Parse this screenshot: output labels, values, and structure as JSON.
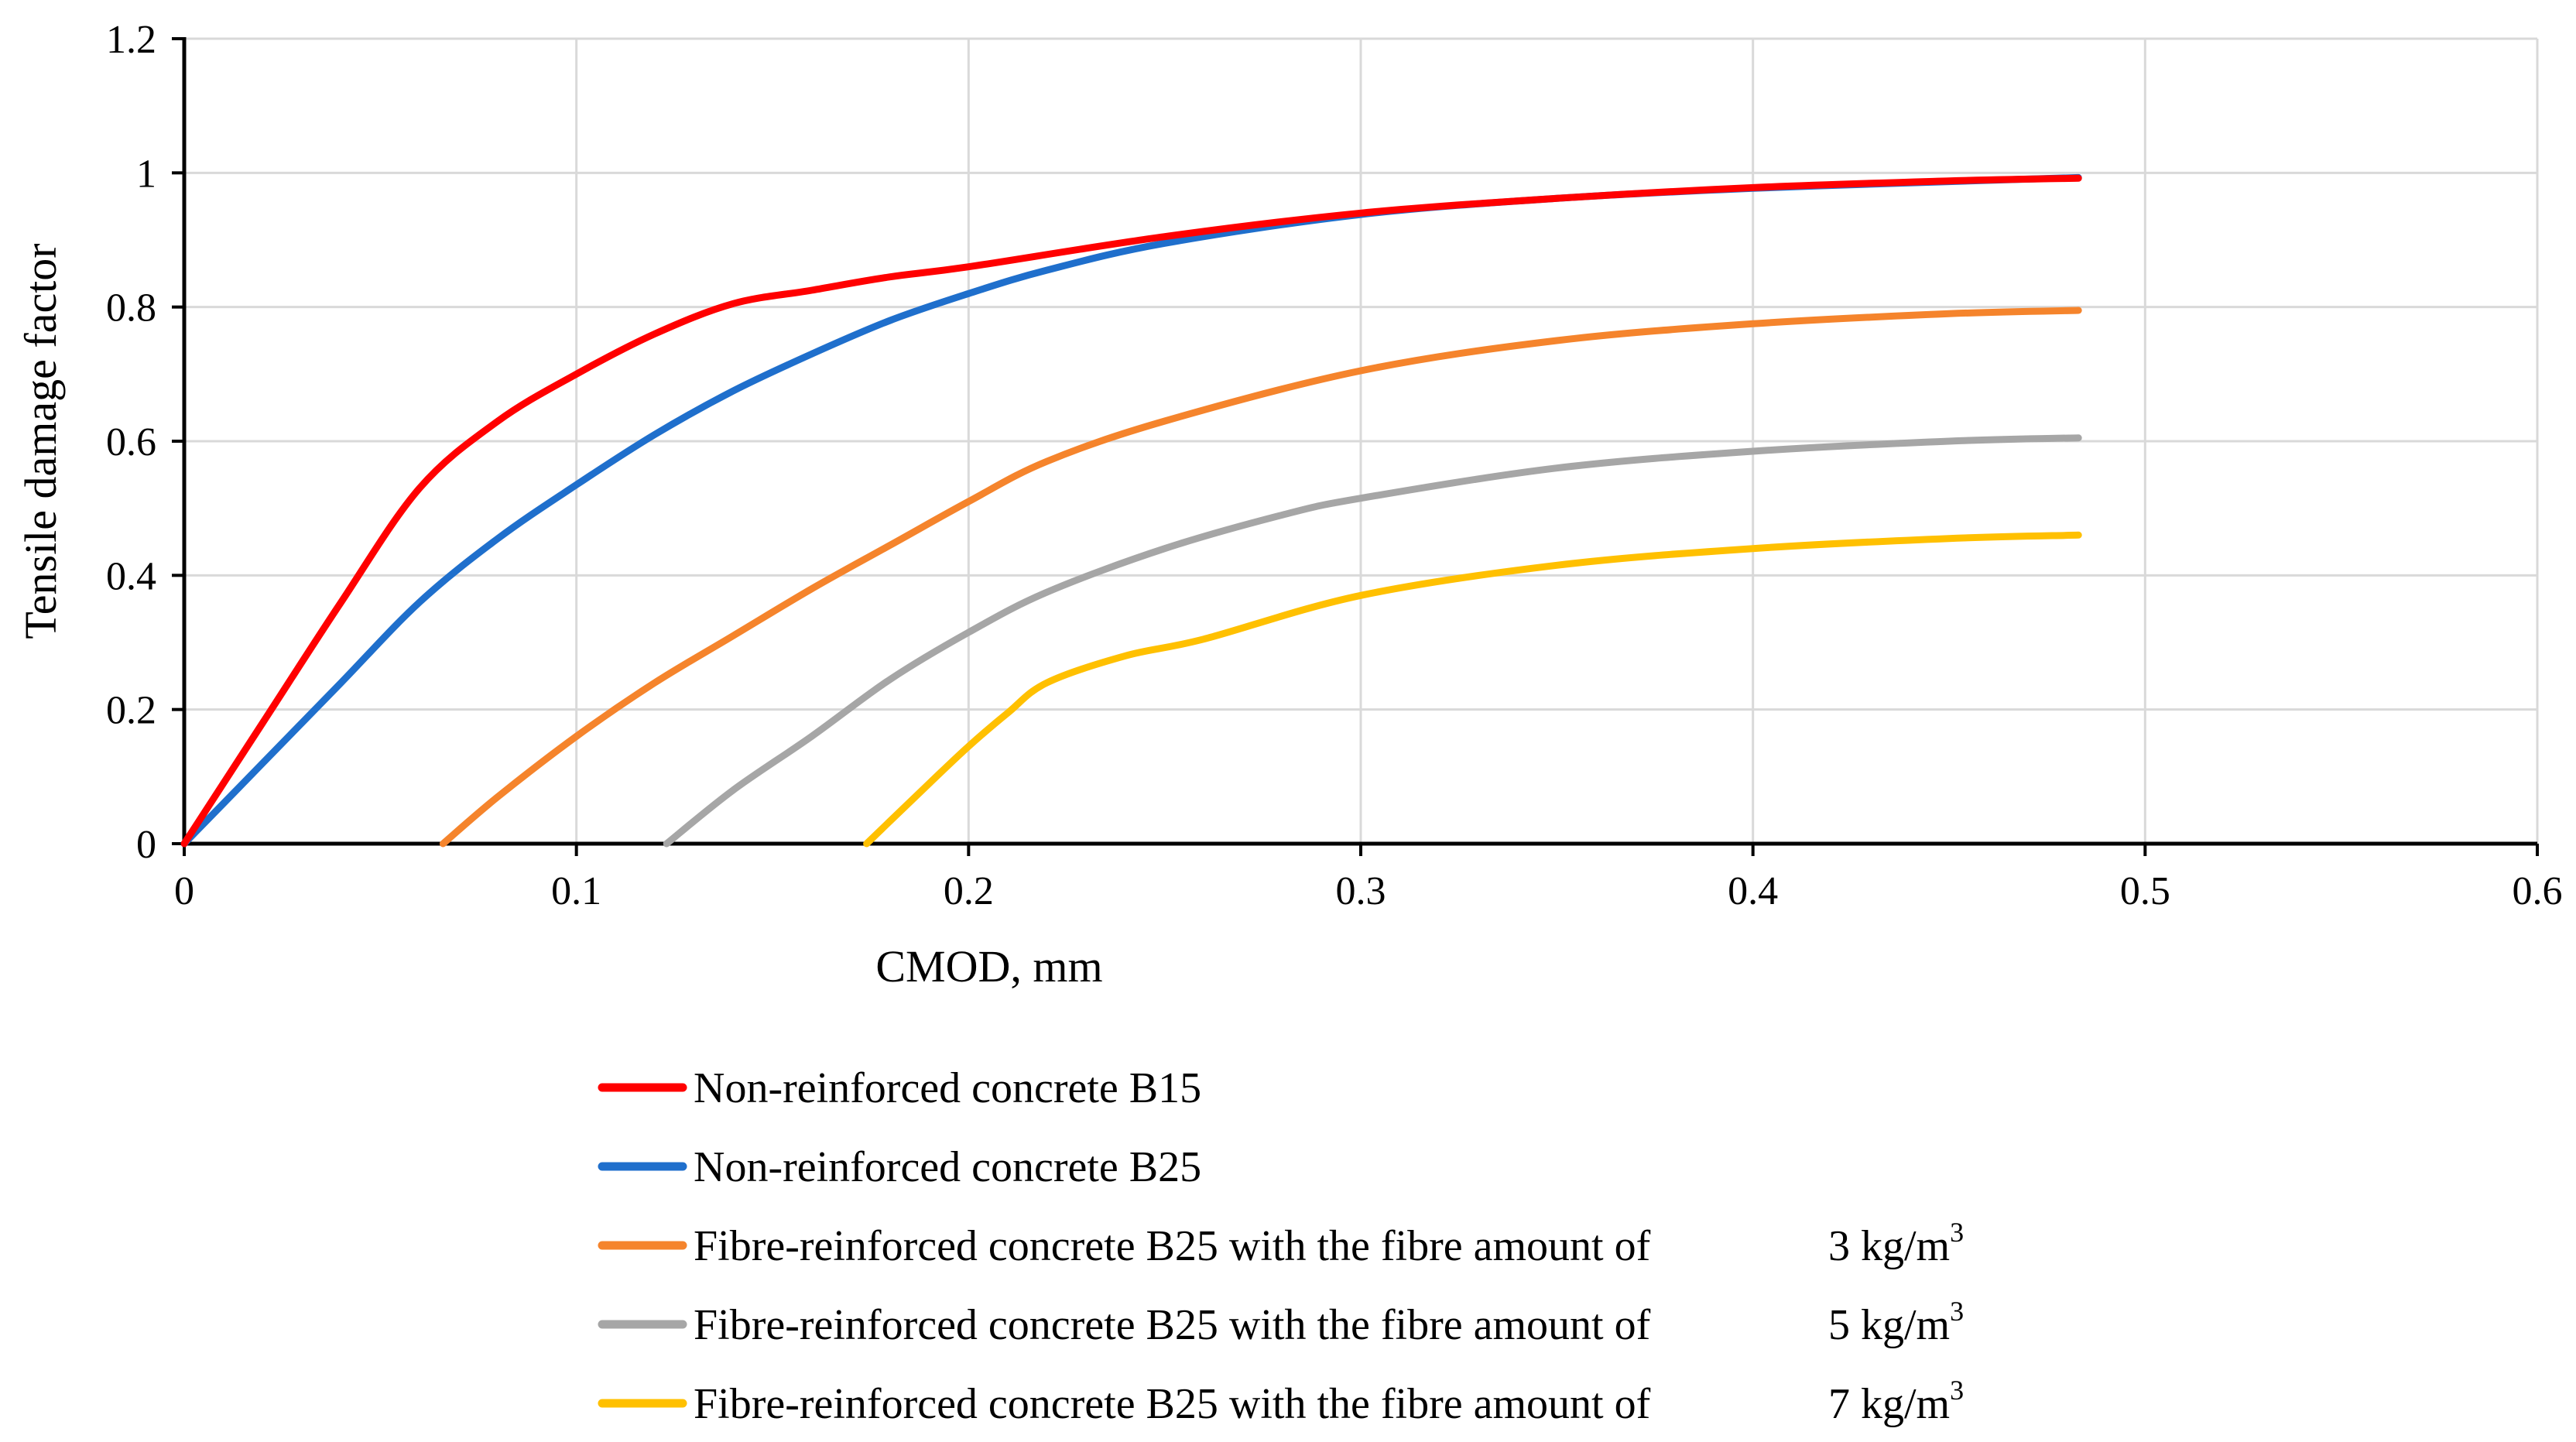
{
  "chart_data": {
    "type": "line",
    "title": "",
    "xlabel": "CMOD, mm",
    "ylabel": "Tensile damage factor",
    "xlim": [
      0,
      0.6
    ],
    "ylim": [
      0,
      1.2
    ],
    "xticks": [
      0,
      0.1,
      0.2,
      0.3,
      0.4,
      0.5,
      0.6
    ],
    "yticks": [
      0,
      0.2,
      0.4,
      0.6,
      0.8,
      1,
      1.2
    ],
    "xtick_labels": [
      "0",
      "0.1",
      "0.2",
      "0.3",
      "0.4",
      "0.5",
      "0.6"
    ],
    "ytick_labels": [
      "0",
      "0.2",
      "0.4",
      "0.6",
      "0.8",
      "1",
      "1.2"
    ],
    "grid": true,
    "legend_position": "bottom",
    "series": [
      {
        "name": "Non-reinforced concrete B15",
        "legend_main": "Non-reinforced concrete B15",
        "legend_amount": "",
        "legend_sup": "",
        "color": "#FF0000",
        "x": [
          0,
          0.02,
          0.04,
          0.06,
          0.08,
          0.1,
          0.12,
          0.14,
          0.16,
          0.18,
          0.2,
          0.25,
          0.3,
          0.35,
          0.4,
          0.45,
          0.483
        ],
        "y": [
          0,
          0.18,
          0.36,
          0.53,
          0.63,
          0.7,
          0.76,
          0.805,
          0.825,
          0.845,
          0.86,
          0.905,
          0.94,
          0.962,
          0.978,
          0.988,
          0.992
        ]
      },
      {
        "name": "Non-reinforced concrete B25",
        "legend_main": "Non-reinforced concrete B25",
        "legend_amount": "",
        "legend_sup": "",
        "color": "#1F6FCC",
        "x": [
          0,
          0.02,
          0.04,
          0.06,
          0.08,
          0.1,
          0.12,
          0.14,
          0.16,
          0.18,
          0.2,
          0.22,
          0.25,
          0.3,
          0.35,
          0.4,
          0.45,
          0.483
        ],
        "y": [
          0,
          0.12,
          0.24,
          0.36,
          0.455,
          0.535,
          0.61,
          0.675,
          0.73,
          0.78,
          0.82,
          0.855,
          0.895,
          0.938,
          0.962,
          0.977,
          0.987,
          0.993
        ]
      },
      {
        "name": "Fibre-reinforced concrete B25 with the fibre amount of 3 kg/m3",
        "legend_main": "Fibre-reinforced concrete B25 with the fibre amount of",
        "legend_amount": "3 kg/m",
        "legend_sup": "3",
        "color": "#F5842C",
        "x": [
          0.066,
          0.08,
          0.1,
          0.12,
          0.14,
          0.16,
          0.18,
          0.2,
          0.22,
          0.25,
          0.3,
          0.35,
          0.4,
          0.45,
          0.483
        ],
        "y": [
          0,
          0.07,
          0.16,
          0.24,
          0.31,
          0.38,
          0.445,
          0.51,
          0.57,
          0.63,
          0.705,
          0.75,
          0.775,
          0.79,
          0.795
        ]
      },
      {
        "name": "Fibre-reinforced concrete B25 with the fibre amount of 5 kg/m3",
        "legend_main": "Fibre-reinforced concrete B25 with the fibre amount of",
        "legend_amount": "5 kg/m",
        "legend_sup": "3",
        "color": "#A6A6A6",
        "x": [
          0.123,
          0.14,
          0.16,
          0.18,
          0.2,
          0.22,
          0.25,
          0.28,
          0.3,
          0.35,
          0.4,
          0.45,
          0.483
        ],
        "y": [
          0,
          0.08,
          0.16,
          0.245,
          0.315,
          0.375,
          0.44,
          0.49,
          0.515,
          0.56,
          0.585,
          0.6,
          0.605
        ]
      },
      {
        "name": "Fibre-reinforced concrete B25 with the fibre amount of 7 kg/m3",
        "legend_main": "Fibre-reinforced concrete B25 with the fibre amount of",
        "legend_amount": "7 kg/m",
        "legend_sup": "3",
        "color": "#FFC000",
        "x": [
          0.174,
          0.19,
          0.2,
          0.21,
          0.22,
          0.24,
          0.26,
          0.3,
          0.35,
          0.4,
          0.45,
          0.483
        ],
        "y": [
          0,
          0.09,
          0.145,
          0.195,
          0.24,
          0.28,
          0.305,
          0.37,
          0.415,
          0.44,
          0.455,
          0.46
        ]
      }
    ]
  }
}
